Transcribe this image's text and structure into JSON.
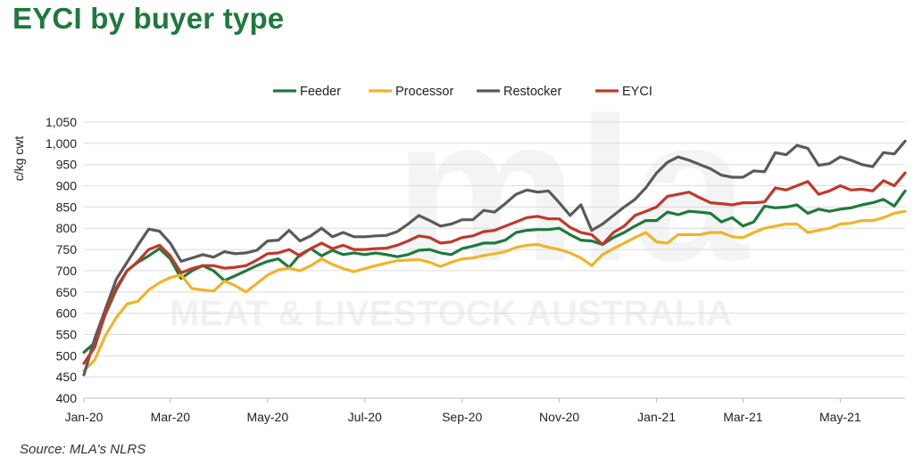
{
  "title": "EYCI by buyer type",
  "source": "Source: MLA's NLRS",
  "watermark": {
    "logo": "mla",
    "text": "MEAT & LIVESTOCK AUSTRALIA"
  },
  "chart_data": {
    "type": "line",
    "title": "EYCI by buyer type",
    "xlabel": "",
    "ylabel": "c/kg cwt",
    "ylim": [
      400,
      1050
    ],
    "yticks": [
      400,
      450,
      500,
      550,
      600,
      650,
      700,
      750,
      800,
      850,
      900,
      950,
      1000,
      1050
    ],
    "ytick_labels": [
      "400",
      "450",
      "500",
      "550",
      "600",
      "650",
      "700",
      "750",
      "800",
      "850",
      "900",
      "950",
      "1,000",
      "1,050"
    ],
    "x_tick_labels": [
      "Jan-20",
      "Mar-20",
      "May-20",
      "Jul-20",
      "Sep-20",
      "Nov-20",
      "Jan-21",
      "Mar-21",
      "May-21"
    ],
    "x_tick_index": [
      0,
      8,
      17,
      26,
      35,
      44,
      53,
      61,
      70
    ],
    "grid": "horizontal",
    "legend": "top-center",
    "series": [
      {
        "name": "Feeder",
        "color": "#1e7a3c",
        "values": [
          508,
          530,
          598,
          655,
          700,
          720,
          735,
          752,
          728,
          682,
          700,
          712,
          700,
          677,
          688,
          700,
          712,
          722,
          728,
          708,
          738,
          752,
          735,
          748,
          738,
          742,
          738,
          742,
          738,
          733,
          738,
          748,
          750,
          742,
          738,
          752,
          758,
          765,
          765,
          772,
          790,
          795,
          797,
          797,
          800,
          785,
          772,
          770,
          762,
          778,
          790,
          805,
          818,
          818,
          838,
          832,
          840,
          838,
          835,
          815,
          825,
          805,
          815,
          852,
          848,
          850,
          855,
          835,
          845,
          840,
          845,
          848,
          855,
          860,
          868,
          852,
          888
        ]
      },
      {
        "name": "Processor",
        "color": "#f0b429",
        "values": [
          465,
          490,
          548,
          590,
          622,
          628,
          655,
          672,
          684,
          690,
          658,
          655,
          652,
          676,
          665,
          650,
          670,
          690,
          702,
          706,
          700,
          712,
          728,
          715,
          705,
          698,
          705,
          712,
          718,
          724,
          725,
          726,
          720,
          710,
          720,
          728,
          730,
          736,
          740,
          745,
          755,
          760,
          762,
          755,
          750,
          742,
          730,
          712,
          738,
          752,
          765,
          778,
          790,
          768,
          765,
          785,
          785,
          785,
          790,
          790,
          780,
          778,
          790,
          800,
          805,
          810,
          810,
          790,
          795,
          800,
          810,
          812,
          818,
          818,
          825,
          835,
          840
        ]
      },
      {
        "name": "Restocker",
        "color": "#5a5a5a",
        "values": [
          455,
          540,
          610,
          680,
          720,
          760,
          798,
          793,
          765,
          722,
          730,
          738,
          732,
          745,
          740,
          742,
          748,
          770,
          772,
          795,
          770,
          782,
          800,
          780,
          790,
          780,
          780,
          782,
          783,
          792,
          810,
          830,
          818,
          805,
          810,
          820,
          820,
          842,
          838,
          858,
          880,
          890,
          885,
          888,
          860,
          830,
          855,
          795,
          810,
          830,
          850,
          868,
          895,
          930,
          955,
          968,
          960,
          950,
          940,
          925,
          920,
          920,
          935,
          933,
          978,
          973,
          995,
          988,
          948,
          952,
          968,
          960,
          950,
          945,
          978,
          975,
          1005
        ]
      },
      {
        "name": "EYCI",
        "color": "#c0392b",
        "values": [
          482,
          520,
          600,
          660,
          700,
          722,
          750,
          760,
          735,
          695,
          705,
          712,
          712,
          706,
          708,
          712,
          725,
          740,
          742,
          750,
          735,
          752,
          765,
          752,
          760,
          750,
          750,
          752,
          753,
          760,
          770,
          782,
          778,
          765,
          768,
          778,
          782,
          792,
          795,
          805,
          815,
          825,
          828,
          822,
          822,
          802,
          790,
          785,
          762,
          790,
          805,
          830,
          840,
          850,
          875,
          880,
          885,
          872,
          860,
          858,
          855,
          860,
          860,
          862,
          895,
          890,
          900,
          910,
          880,
          888,
          900,
          890,
          892,
          888,
          912,
          900,
          930
        ]
      }
    ]
  }
}
